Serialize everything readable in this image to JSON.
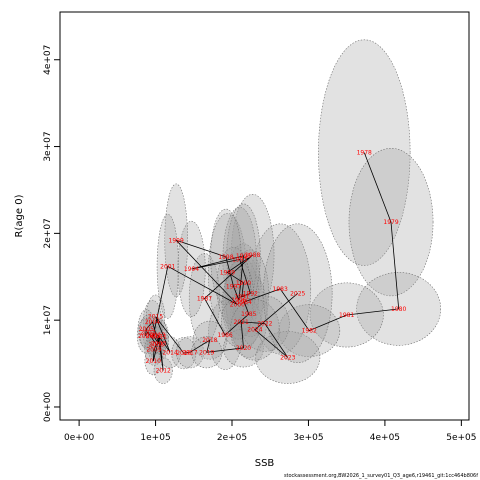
{
  "chart_data": {
    "type": "scatter",
    "xlabel": "SSB",
    "ylabel": "R(age 0)",
    "xlim": [
      -25000,
      510000
    ],
    "ylim": [
      -1500000,
      45500000
    ],
    "x_ticks": [
      0,
      100000,
      200000,
      300000,
      400000,
      500000
    ],
    "x_tick_labels": [
      "0e+00",
      "1e+05",
      "2e+05",
      "3e+05",
      "4e+05",
      "5e+05"
    ],
    "y_ticks": [
      0,
      10000000,
      20000000,
      30000000,
      40000000
    ],
    "y_tick_labels": [
      "0e+00",
      "1e+07",
      "2e+07",
      "3e+07",
      "4e+07"
    ],
    "grid": false,
    "colors": {
      "line": "#000000",
      "labels": "#ff0000",
      "ellipse_fill": "#a0a0a0",
      "ellipse_stroke": "#707070"
    },
    "points": [
      {
        "year": "1978",
        "x": 373000,
        "y": 29300000
      },
      {
        "year": "1979",
        "x": 408000,
        "y": 21300000
      },
      {
        "year": "1980",
        "x": 418000,
        "y": 11300000
      },
      {
        "year": "1981",
        "x": 350000,
        "y": 10600000
      },
      {
        "year": "1982",
        "x": 301000,
        "y": 8800000
      },
      {
        "year": "1983",
        "x": 263000,
        "y": 13600000
      },
      {
        "year": "1984",
        "x": 216000,
        "y": 12100000
      },
      {
        "year": "1985",
        "x": 222000,
        "y": 10700000
      },
      {
        "year": "1986",
        "x": 191000,
        "y": 8300000
      },
      {
        "year": "1987",
        "x": 164000,
        "y": 12500000
      },
      {
        "year": "1988",
        "x": 227000,
        "y": 17500000
      },
      {
        "year": "1989",
        "x": 194000,
        "y": 15500000
      },
      {
        "year": "1990",
        "x": 215000,
        "y": 14300000
      },
      {
        "year": "1991",
        "x": 213000,
        "y": 12700000
      },
      {
        "year": "1992",
        "x": 224000,
        "y": 13100000
      },
      {
        "year": "1993",
        "x": 210000,
        "y": 17000000
      },
      {
        "year": "1994",
        "x": 147000,
        "y": 15900000
      },
      {
        "year": "1995",
        "x": 215000,
        "y": 17400000
      },
      {
        "year": "1996",
        "x": 209000,
        "y": 12300000
      },
      {
        "year": "1997",
        "x": 202000,
        "y": 13900000
      },
      {
        "year": "1998",
        "x": 192000,
        "y": 17300000
      },
      {
        "year": "1999",
        "x": 127000,
        "y": 19200000
      },
      {
        "year": "2000",
        "x": 207000,
        "y": 11800000
      },
      {
        "year": "2001",
        "x": 116000,
        "y": 16200000
      },
      {
        "year": "2002",
        "x": 97000,
        "y": 8200000
      },
      {
        "year": "2003",
        "x": 104000,
        "y": 7300000
      },
      {
        "year": "2004",
        "x": 96000,
        "y": 9800000
      },
      {
        "year": "2005",
        "x": 88000,
        "y": 9000000
      },
      {
        "year": "2006",
        "x": 87000,
        "y": 8200000
      },
      {
        "year": "2007",
        "x": 90000,
        "y": 8600000
      },
      {
        "year": "2008",
        "x": 101000,
        "y": 7200000
      },
      {
        "year": "2009",
        "x": 98000,
        "y": 6600000
      },
      {
        "year": "2010",
        "x": 97000,
        "y": 5300000
      },
      {
        "year": "2011",
        "x": 105000,
        "y": 8100000
      },
      {
        "year": "2012",
        "x": 110000,
        "y": 4200000
      },
      {
        "year": "2013",
        "x": 103000,
        "y": 8300000
      },
      {
        "year": "2014",
        "x": 119000,
        "y": 6300000
      },
      {
        "year": "2015",
        "x": 100000,
        "y": 10400000
      },
      {
        "year": "2016",
        "x": 137000,
        "y": 6200000
      },
      {
        "year": "2017",
        "x": 145000,
        "y": 6300000
      },
      {
        "year": "2018",
        "x": 171000,
        "y": 7700000
      },
      {
        "year": "2019",
        "x": 167000,
        "y": 6300000
      },
      {
        "year": "2020",
        "x": 215000,
        "y": 6800000
      },
      {
        "year": "2021",
        "x": 212000,
        "y": 9800000
      },
      {
        "year": "2022",
        "x": 243000,
        "y": 9600000
      },
      {
        "year": "2023",
        "x": 273000,
        "y": 5700000
      },
      {
        "year": "2024",
        "x": 230000,
        "y": 8900000
      },
      {
        "year": "2025",
        "x": 286000,
        "y": 13100000
      }
    ],
    "uncertainty_ellipses": [
      {
        "year": "1978",
        "cx": 373000,
        "cy": 29300000,
        "rx": 60000,
        "ry": 13000000
      },
      {
        "year": "1979",
        "cx": 408000,
        "cy": 21300000,
        "rx": 55000,
        "ry": 8500000
      },
      {
        "year": "1980",
        "cx": 418000,
        "cy": 11300000,
        "rx": 55000,
        "ry": 4200000
      },
      {
        "year": "1981",
        "cx": 350000,
        "cy": 10600000,
        "rx": 48000,
        "ry": 3700000
      },
      {
        "year": "1982",
        "cx": 301000,
        "cy": 8800000,
        "rx": 40000,
        "ry": 3000000
      },
      {
        "year": "1983",
        "cx": 263000,
        "cy": 13600000,
        "rx": 40000,
        "ry": 7500000
      },
      {
        "year": "1984",
        "cx": 216000,
        "cy": 12100000,
        "rx": 24000,
        "ry": 5500000
      },
      {
        "year": "1985",
        "cx": 222000,
        "cy": 10700000,
        "rx": 24000,
        "ry": 5000000
      },
      {
        "year": "1986",
        "cx": 191000,
        "cy": 8300000,
        "rx": 22000,
        "ry": 4000000
      },
      {
        "year": "1987",
        "cx": 164000,
        "cy": 12500000,
        "rx": 20000,
        "ry": 5200000
      },
      {
        "year": "1988",
        "cx": 227000,
        "cy": 17500000,
        "rx": 28000,
        "ry": 7000000
      },
      {
        "year": "1989",
        "cx": 194000,
        "cy": 15500000,
        "rx": 25000,
        "ry": 6800000
      },
      {
        "year": "1990",
        "cx": 215000,
        "cy": 14300000,
        "rx": 22000,
        "ry": 4500000
      },
      {
        "year": "1991",
        "cx": 213000,
        "cy": 12700000,
        "rx": 22000,
        "ry": 4500000
      },
      {
        "year": "1992",
        "cx": 224000,
        "cy": 13100000,
        "rx": 24000,
        "ry": 5000000
      },
      {
        "year": "1993",
        "cx": 210000,
        "cy": 17000000,
        "rx": 22000,
        "ry": 6000000
      },
      {
        "year": "1994",
        "cx": 147000,
        "cy": 15900000,
        "rx": 18000,
        "ry": 5500000
      },
      {
        "year": "1995",
        "cx": 215000,
        "cy": 17400000,
        "rx": 22000,
        "ry": 6000000
      },
      {
        "year": "1996",
        "cx": 209000,
        "cy": 12300000,
        "rx": 20000,
        "ry": 4500000
      },
      {
        "year": "1997",
        "cx": 202000,
        "cy": 13900000,
        "rx": 22000,
        "ry": 4500000
      },
      {
        "year": "1998",
        "cx": 192000,
        "cy": 17300000,
        "rx": 20000,
        "ry": 5500000
      },
      {
        "year": "1999",
        "cx": 127000,
        "cy": 19200000,
        "rx": 15000,
        "ry": 6500000
      },
      {
        "year": "2000",
        "cx": 207000,
        "cy": 11800000,
        "rx": 20000,
        "ry": 4000000
      },
      {
        "year": "2001",
        "cx": 116000,
        "cy": 16200000,
        "rx": 14000,
        "ry": 6000000
      },
      {
        "year": "2002",
        "cx": 97000,
        "cy": 8200000,
        "rx": 13000,
        "ry": 2200000
      },
      {
        "year": "2003",
        "cx": 104000,
        "cy": 7300000,
        "rx": 13000,
        "ry": 2000000
      },
      {
        "year": "2004",
        "cx": 96000,
        "cy": 9800000,
        "rx": 12000,
        "ry": 2500000
      },
      {
        "year": "2005",
        "cx": 88000,
        "cy": 9000000,
        "rx": 11000,
        "ry": 2200000
      },
      {
        "year": "2006",
        "cx": 87000,
        "cy": 8200000,
        "rx": 11000,
        "ry": 2000000
      },
      {
        "year": "2007",
        "cx": 90000,
        "cy": 8600000,
        "rx": 11000,
        "ry": 2000000
      },
      {
        "year": "2008",
        "cx": 101000,
        "cy": 7200000,
        "rx": 12000,
        "ry": 2000000
      },
      {
        "year": "2009",
        "cx": 98000,
        "cy": 6600000,
        "rx": 12000,
        "ry": 1800000
      },
      {
        "year": "2010",
        "cx": 97000,
        "cy": 5300000,
        "rx": 11000,
        "ry": 1600000
      },
      {
        "year": "2011",
        "cx": 105000,
        "cy": 8100000,
        "rx": 12000,
        "ry": 2000000
      },
      {
        "year": "2012",
        "cx": 110000,
        "cy": 4200000,
        "rx": 12000,
        "ry": 1500000
      },
      {
        "year": "2013",
        "cx": 103000,
        "cy": 8300000,
        "rx": 12000,
        "ry": 2000000
      },
      {
        "year": "2014",
        "cx": 119000,
        "cy": 6300000,
        "rx": 14000,
        "ry": 1800000
      },
      {
        "year": "2015",
        "cx": 100000,
        "cy": 10400000,
        "rx": 12000,
        "ry": 2500000
      },
      {
        "year": "2016",
        "cx": 137000,
        "cy": 6200000,
        "rx": 16000,
        "ry": 1800000
      },
      {
        "year": "2017",
        "cx": 145000,
        "cy": 6300000,
        "rx": 18000,
        "ry": 1800000
      },
      {
        "year": "2018",
        "cx": 171000,
        "cy": 7700000,
        "rx": 22000,
        "ry": 2200000
      },
      {
        "year": "2019",
        "cx": 167000,
        "cy": 6300000,
        "rx": 20000,
        "ry": 1800000
      },
      {
        "year": "2020",
        "cx": 215000,
        "cy": 6800000,
        "rx": 26000,
        "ry": 2200000
      },
      {
        "year": "2021",
        "cx": 212000,
        "cy": 9800000,
        "rx": 26000,
        "ry": 3000000
      },
      {
        "year": "2022",
        "cx": 243000,
        "cy": 9600000,
        "rx": 32000,
        "ry": 3200000
      },
      {
        "year": "2023",
        "cx": 273000,
        "cy": 5700000,
        "rx": 42000,
        "ry": 3000000
      },
      {
        "year": "2024",
        "cx": 230000,
        "cy": 8900000,
        "rx": 32000,
        "ry": 3500000
      },
      {
        "year": "2025",
        "cx": 286000,
        "cy": 13100000,
        "rx": 45000,
        "ry": 8000000
      }
    ]
  },
  "footer_text": "stockassessment.org,BW2026_1_survey01_Q3_age6,r19461_git:1cc464b806f"
}
